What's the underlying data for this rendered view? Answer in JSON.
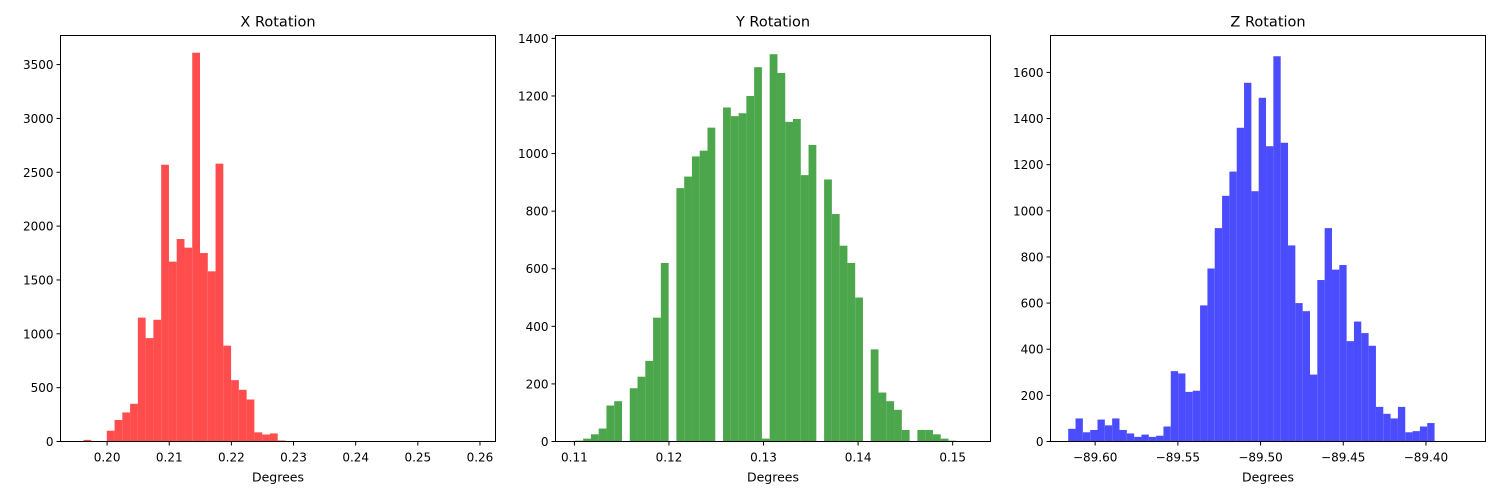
{
  "chart_data": [
    {
      "type": "bar",
      "title": "X Rotation",
      "xlabel": "Degrees",
      "ylabel": "",
      "color": "#ff4c4c",
      "xlim": [
        0.1925,
        0.2625
      ],
      "ylim": [
        0,
        3770
      ],
      "xticks": [
        0.2,
        0.21,
        0.22,
        0.23,
        0.24,
        0.25,
        0.26
      ],
      "xtick_labels": [
        "0.20",
        "0.21",
        "0.22",
        "0.23",
        "0.24",
        "0.25",
        "0.26"
      ],
      "yticks": [
        0,
        500,
        1000,
        1500,
        2000,
        2500,
        3000,
        3500
      ],
      "ytick_labels": [
        "0",
        "500",
        "1000",
        "1500",
        "2000",
        "2500",
        "3000",
        "3500"
      ],
      "bin_start": 0.1962,
      "bin_width": 0.00125,
      "values": [
        15,
        5,
        5,
        100,
        200,
        270,
        350,
        1150,
        960,
        1130,
        2570,
        1670,
        1880,
        1800,
        3610,
        1750,
        1580,
        2580,
        890,
        570,
        480,
        390,
        85,
        65,
        75,
        10,
        5
      ]
    },
    {
      "type": "bar",
      "title": "Y Rotation",
      "xlabel": "Degrees",
      "ylabel": "",
      "color": "#4ca64c",
      "xlim": [
        0.108,
        0.154
      ],
      "ylim": [
        0,
        1410
      ],
      "xticks": [
        0.11,
        0.12,
        0.13,
        0.14,
        0.15
      ],
      "xtick_labels": [
        "0.11",
        "0.12",
        "0.13",
        "0.14",
        "0.15"
      ],
      "yticks": [
        0,
        200,
        400,
        600,
        800,
        1000,
        1200,
        1400
      ],
      "ytick_labels": [
        "0",
        "200",
        "400",
        "600",
        "800",
        "1000",
        "1200",
        "1400"
      ],
      "bin_start": 0.1101,
      "bin_width": 0.000822,
      "values": [
        3,
        10,
        25,
        45,
        125,
        140,
        0,
        185,
        225,
        280,
        430,
        620,
        0,
        880,
        920,
        990,
        1010,
        1090,
        0,
        1160,
        1130,
        1140,
        1200,
        1300,
        10,
        1345,
        1280,
        1110,
        1120,
        925,
        1030,
        0,
        910,
        790,
        680,
        620,
        500,
        0,
        320,
        170,
        140,
        110,
        40,
        0,
        40,
        40,
        25,
        10,
        3
      ]
    },
    {
      "type": "bar",
      "title": "Z Rotation",
      "xlabel": "Degrees",
      "ylabel": "",
      "color": "#4c4cff",
      "xlim": [
        -89.627,
        -89.364
      ],
      "ylim": [
        0,
        1760
      ],
      "xticks": [
        -89.6,
        -89.55,
        -89.5,
        -89.45,
        -89.4
      ],
      "xtick_labels": [
        "−89.60",
        "−89.55",
        "−89.50",
        "−89.45",
        "−89.40"
      ],
      "yticks": [
        0,
        200,
        400,
        600,
        800,
        1000,
        1200,
        1400,
        1600
      ],
      "ytick_labels": [
        "0",
        "200",
        "400",
        "600",
        "800",
        "1000",
        "1200",
        "1400",
        "1600"
      ],
      "bin_start": -89.6163,
      "bin_width": 0.00443,
      "values": [
        55,
        100,
        40,
        50,
        95,
        70,
        100,
        50,
        35,
        20,
        30,
        20,
        25,
        65,
        305,
        295,
        215,
        220,
        590,
        750,
        925,
        1065,
        1170,
        1360,
        1555,
        1085,
        1490,
        1280,
        1670,
        1295,
        850,
        600,
        565,
        290,
        700,
        925,
        745,
        765,
        435,
        520,
        470,
        415,
        150,
        120,
        100,
        150,
        40,
        45,
        65,
        80
      ]
    }
  ]
}
